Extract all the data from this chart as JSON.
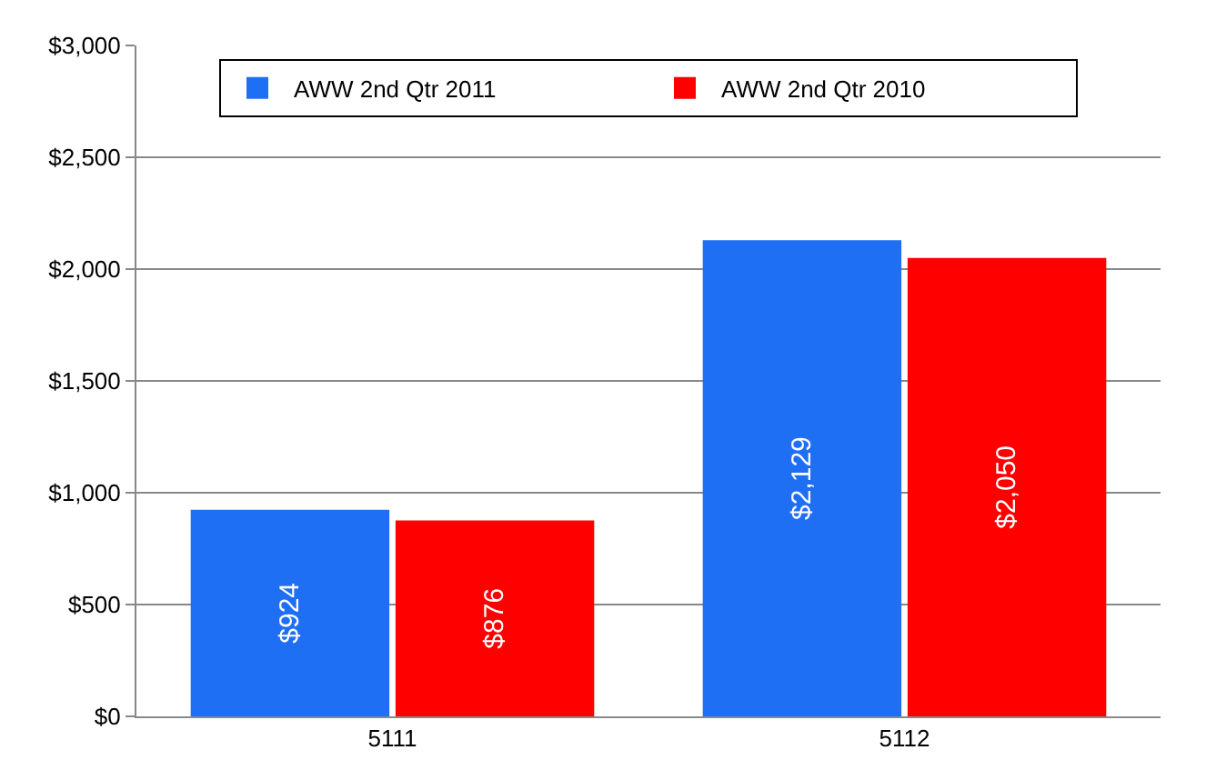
{
  "chart_data": {
    "type": "bar",
    "categories": [
      "5111",
      "5112"
    ],
    "series": [
      {
        "name": "AWW 2nd Qtr 2011",
        "color": "#1f6ff5",
        "values": [
          924,
          2129
        ],
        "value_labels": [
          "$924",
          "$2,129"
        ]
      },
      {
        "name": "AWW 2nd Qtr 2010",
        "color": "#ff0000",
        "values": [
          876,
          2050
        ],
        "value_labels": [
          "$876",
          "$2,050"
        ]
      }
    ],
    "ylim": [
      0,
      3000
    ],
    "yticks": [
      {
        "value": 0,
        "label": "$0"
      },
      {
        "value": 500,
        "label": "$500"
      },
      {
        "value": 1000,
        "label": "$1,000"
      },
      {
        "value": 1500,
        "label": "$1,500"
      },
      {
        "value": 2000,
        "label": "$2,000"
      },
      {
        "value": 2500,
        "label": "$2,500"
      },
      {
        "value": 3000,
        "label": "$3,000"
      }
    ],
    "grid": "y",
    "legend": "top"
  }
}
